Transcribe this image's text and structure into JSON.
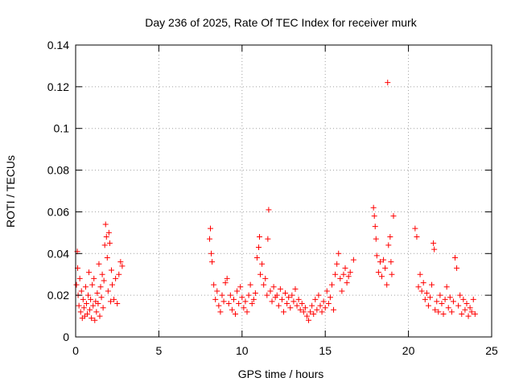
{
  "chart_data": {
    "type": "scatter",
    "title": "Day 236 of 2025, Rate Of TEC Index for receiver murk",
    "xlabel": "GPS time / hours",
    "ylabel": "ROTI / TECUs",
    "xlim": [
      0,
      25
    ],
    "ylim": [
      0,
      0.14
    ],
    "xticks": [
      0,
      5,
      10,
      15,
      20,
      25
    ],
    "yticks": [
      0,
      0.02,
      0.04,
      0.06,
      0.08,
      0.1,
      0.12,
      0.14
    ],
    "ytick_labels": [
      "0",
      "0.02",
      "0.04",
      "0.06",
      "0.08",
      "0.1",
      "0.12",
      "0.14"
    ],
    "grid": true,
    "marker": "plus",
    "color": "#ff0000",
    "points": [
      [
        0.05,
        0.025
      ],
      [
        0.1,
        0.041
      ],
      [
        0.12,
        0.033
      ],
      [
        0.15,
        0.02
      ],
      [
        0.2,
        0.015
      ],
      [
        0.25,
        0.028
      ],
      [
        0.3,
        0.012
      ],
      [
        0.35,
        0.022
      ],
      [
        0.4,
        0.009
      ],
      [
        0.45,
        0.018
      ],
      [
        0.5,
        0.014
      ],
      [
        0.55,
        0.01
      ],
      [
        0.6,
        0.024
      ],
      [
        0.65,
        0.016
      ],
      [
        0.7,
        0.011
      ],
      [
        0.75,
        0.02
      ],
      [
        0.8,
        0.031
      ],
      [
        0.85,
        0.013
      ],
      [
        0.9,
        0.018
      ],
      [
        0.95,
        0.009
      ],
      [
        1.0,
        0.025
      ],
      [
        1.05,
        0.015
      ],
      [
        1.1,
        0.028
      ],
      [
        1.15,
        0.008
      ],
      [
        1.2,
        0.017
      ],
      [
        1.25,
        0.012
      ],
      [
        1.3,
        0.021
      ],
      [
        1.35,
        0.016
      ],
      [
        1.4,
        0.035
      ],
      [
        1.45,
        0.01
      ],
      [
        1.5,
        0.024
      ],
      [
        1.55,
        0.019
      ],
      [
        1.6,
        0.03
      ],
      [
        1.65,
        0.014
      ],
      [
        1.7,
        0.027
      ],
      [
        1.75,
        0.044
      ],
      [
        1.8,
        0.054
      ],
      [
        1.85,
        0.048
      ],
      [
        1.9,
        0.038
      ],
      [
        1.95,
        0.022
      ],
      [
        2.0,
        0.05
      ],
      [
        2.05,
        0.045
      ],
      [
        2.1,
        0.017
      ],
      [
        2.15,
        0.032
      ],
      [
        2.2,
        0.025
      ],
      [
        2.3,
        0.018
      ],
      [
        2.4,
        0.028
      ],
      [
        2.5,
        0.016
      ],
      [
        2.6,
        0.03
      ],
      [
        2.7,
        0.036
      ],
      [
        2.8,
        0.034
      ],
      [
        8.05,
        0.047
      ],
      [
        8.1,
        0.052
      ],
      [
        8.15,
        0.04
      ],
      [
        8.2,
        0.036
      ],
      [
        8.3,
        0.025
      ],
      [
        8.4,
        0.018
      ],
      [
        8.5,
        0.022
      ],
      [
        8.6,
        0.015
      ],
      [
        8.7,
        0.012
      ],
      [
        8.8,
        0.02
      ],
      [
        8.9,
        0.017
      ],
      [
        9.0,
        0.026
      ],
      [
        9.1,
        0.028
      ],
      [
        9.2,
        0.016
      ],
      [
        9.3,
        0.02
      ],
      [
        9.4,
        0.013
      ],
      [
        9.5,
        0.018
      ],
      [
        9.6,
        0.011
      ],
      [
        9.7,
        0.022
      ],
      [
        9.8,
        0.016
      ],
      [
        9.9,
        0.024
      ],
      [
        10.0,
        0.019
      ],
      [
        10.1,
        0.014
      ],
      [
        10.2,
        0.017
      ],
      [
        10.3,
        0.012
      ],
      [
        10.4,
        0.02
      ],
      [
        10.5,
        0.025
      ],
      [
        10.6,
        0.016
      ],
      [
        10.7,
        0.018
      ],
      [
        10.8,
        0.021
      ],
      [
        10.9,
        0.038
      ],
      [
        11.0,
        0.043
      ],
      [
        11.05,
        0.048
      ],
      [
        11.1,
        0.03
      ],
      [
        11.2,
        0.035
      ],
      [
        11.3,
        0.025
      ],
      [
        11.4,
        0.028
      ],
      [
        11.5,
        0.02
      ],
      [
        11.55,
        0.047
      ],
      [
        11.6,
        0.061
      ],
      [
        11.7,
        0.022
      ],
      [
        11.8,
        0.017
      ],
      [
        11.9,
        0.024
      ],
      [
        12.0,
        0.019
      ],
      [
        12.1,
        0.02
      ],
      [
        12.2,
        0.015
      ],
      [
        12.3,
        0.023
      ],
      [
        12.4,
        0.018
      ],
      [
        12.5,
        0.012
      ],
      [
        12.6,
        0.021
      ],
      [
        12.7,
        0.016
      ],
      [
        12.8,
        0.019
      ],
      [
        12.9,
        0.014
      ],
      [
        13.0,
        0.02
      ],
      [
        13.1,
        0.017
      ],
      [
        13.2,
        0.023
      ],
      [
        13.3,
        0.015
      ],
      [
        13.4,
        0.018
      ],
      [
        13.5,
        0.013
      ],
      [
        13.6,
        0.016
      ],
      [
        13.7,
        0.012
      ],
      [
        13.8,
        0.014
      ],
      [
        13.9,
        0.01
      ],
      [
        14.0,
        0.008
      ],
      [
        14.1,
        0.012
      ],
      [
        14.2,
        0.015
      ],
      [
        14.3,
        0.011
      ],
      [
        14.4,
        0.018
      ],
      [
        14.5,
        0.013
      ],
      [
        14.6,
        0.02
      ],
      [
        14.7,
        0.015
      ],
      [
        14.8,
        0.012
      ],
      [
        14.9,
        0.017
      ],
      [
        15.0,
        0.014
      ],
      [
        15.1,
        0.022
      ],
      [
        15.2,
        0.016
      ],
      [
        15.3,
        0.019
      ],
      [
        15.4,
        0.025
      ],
      [
        15.5,
        0.013
      ],
      [
        15.6,
        0.03
      ],
      [
        15.7,
        0.035
      ],
      [
        15.8,
        0.04
      ],
      [
        15.9,
        0.028
      ],
      [
        16.0,
        0.022
      ],
      [
        16.1,
        0.03
      ],
      [
        16.2,
        0.033
      ],
      [
        16.3,
        0.026
      ],
      [
        16.4,
        0.029
      ],
      [
        16.5,
        0.031
      ],
      [
        16.7,
        0.037
      ],
      [
        17.9,
        0.062
      ],
      [
        17.95,
        0.058
      ],
      [
        18.0,
        0.053
      ],
      [
        18.05,
        0.047
      ],
      [
        18.1,
        0.039
      ],
      [
        18.2,
        0.031
      ],
      [
        18.3,
        0.036
      ],
      [
        18.4,
        0.029
      ],
      [
        18.5,
        0.037
      ],
      [
        18.6,
        0.033
      ],
      [
        18.7,
        0.025
      ],
      [
        18.75,
        0.122
      ],
      [
        18.8,
        0.044
      ],
      [
        18.9,
        0.048
      ],
      [
        18.95,
        0.036
      ],
      [
        19.0,
        0.03
      ],
      [
        19.1,
        0.058
      ],
      [
        20.4,
        0.052
      ],
      [
        20.5,
        0.048
      ],
      [
        20.6,
        0.024
      ],
      [
        20.7,
        0.03
      ],
      [
        20.8,
        0.022
      ],
      [
        20.9,
        0.026
      ],
      [
        21.0,
        0.018
      ],
      [
        21.1,
        0.021
      ],
      [
        21.2,
        0.015
      ],
      [
        21.3,
        0.019
      ],
      [
        21.4,
        0.025
      ],
      [
        21.5,
        0.045
      ],
      [
        21.55,
        0.042
      ],
      [
        21.6,
        0.013
      ],
      [
        21.7,
        0.017
      ],
      [
        21.8,
        0.012
      ],
      [
        21.9,
        0.02
      ],
      [
        22.0,
        0.016
      ],
      [
        22.1,
        0.011
      ],
      [
        22.2,
        0.018
      ],
      [
        22.3,
        0.024
      ],
      [
        22.4,
        0.014
      ],
      [
        22.5,
        0.019
      ],
      [
        22.6,
        0.012
      ],
      [
        22.7,
        0.017
      ],
      [
        22.8,
        0.038
      ],
      [
        22.9,
        0.033
      ],
      [
        23.0,
        0.015
      ],
      [
        23.1,
        0.02
      ],
      [
        23.2,
        0.011
      ],
      [
        23.3,
        0.018
      ],
      [
        23.4,
        0.013
      ],
      [
        23.5,
        0.016
      ],
      [
        23.6,
        0.01
      ],
      [
        23.7,
        0.014
      ],
      [
        23.8,
        0.012
      ],
      [
        23.9,
        0.018
      ],
      [
        24.0,
        0.011
      ]
    ]
  }
}
